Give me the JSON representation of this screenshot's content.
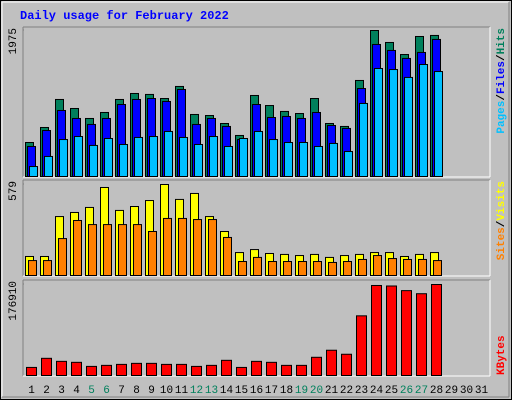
{
  "chart_data": [
    {
      "type": "bar",
      "title": "Daily usage for February 2022",
      "categories": [
        "1",
        "2",
        "3",
        "4",
        "5",
        "6",
        "7",
        "8",
        "9",
        "10",
        "11",
        "12",
        "13",
        "14",
        "15",
        "16",
        "17",
        "18",
        "19",
        "20",
        "21",
        "22",
        "23",
        "24",
        "25",
        "26",
        "27",
        "28",
        "29",
        "30",
        "31"
      ],
      "ylim": [
        0,
        1975
      ],
      "yticks": [
        1975
      ],
      "legend_separator": "/",
      "series": [
        {
          "name": "Hits",
          "color": "#00805c",
          "values": [
            460,
            663,
            1042,
            920,
            785,
            866,
            1042,
            1123,
            1110,
            1055,
            1218,
            839,
            825,
            717,
            555,
            1096,
            960,
            880,
            852,
            1055,
            717,
            677,
            1299,
            1975,
            1813,
            1650,
            1894,
            1908,
            null,
            null,
            null
          ]
        },
        {
          "name": "Files",
          "color": "#0000ff",
          "values": [
            406,
            622,
            893,
            785,
            704,
            785,
            974,
            1042,
            1055,
            1015,
            1177,
            704,
            785,
            677,
            500,
            974,
            798,
            812,
            785,
            866,
            690,
            650,
            1190,
            1786,
            1705,
            1597,
            1678,
            1854,
            null,
            null,
            null
          ]
        },
        {
          "name": "Pages",
          "color": "#00c0ff",
          "values": [
            135,
            271,
            500,
            541,
            420,
            514,
            433,
            528,
            541,
            609,
            528,
            433,
            541,
            406,
            514,
            609,
            500,
            460,
            460,
            406,
            447,
            338,
            988,
            1461,
            1447,
            1340,
            1515,
            1420,
            null,
            null,
            null
          ]
        }
      ]
    },
    {
      "type": "bar",
      "categories": [
        "1",
        "2",
        "3",
        "4",
        "5",
        "6",
        "7",
        "8",
        "9",
        "10",
        "11",
        "12",
        "13",
        "14",
        "15",
        "16",
        "17",
        "18",
        "19",
        "20",
        "21",
        "22",
        "23",
        "24",
        "25",
        "26",
        "27",
        "28",
        "29",
        "30",
        "31"
      ],
      "ylim": [
        0,
        579
      ],
      "yticks": [
        579
      ],
      "legend_separator": "/",
      "series": [
        {
          "name": "Visits",
          "color": "#ffff00",
          "values": [
            121,
            121,
            375,
            401,
            433,
            560,
            414,
            439,
            477,
            579,
            484,
            522,
            375,
            280,
            146,
            165,
            140,
            134,
            127,
            134,
            115,
            127,
            134,
            146,
            146,
            121,
            134,
            146,
            null,
            null,
            null
          ]
        },
        {
          "name": "Sites",
          "color": "#ff8000",
          "values": [
            95,
            95,
            235,
            350,
            324,
            324,
            324,
            324,
            280,
            363,
            363,
            356,
            356,
            242,
            89,
            115,
            89,
            89,
            89,
            89,
            83,
            89,
            102,
            127,
            108,
            102,
            102,
            95,
            null,
            null,
            null
          ]
        }
      ]
    },
    {
      "type": "bar",
      "categories": [
        "1",
        "2",
        "3",
        "4",
        "5",
        "6",
        "7",
        "8",
        "9",
        "10",
        "11",
        "12",
        "13",
        "14",
        "15",
        "16",
        "17",
        "18",
        "19",
        "20",
        "21",
        "22",
        "23",
        "24",
        "25",
        "26",
        "27",
        "28",
        "29",
        "30",
        "31"
      ],
      "ylim": [
        0,
        176910
      ],
      "yticks": [
        176910
      ],
      "highlight_categories": [
        "5",
        "6",
        "12",
        "13",
        "19",
        "20",
        "26",
        "27"
      ],
      "highlight_color": "#00805c",
      "series": [
        {
          "name": "KBytes",
          "color": "#ff0000",
          "values": [
            15700,
            33400,
            27500,
            25600,
            17700,
            19700,
            21600,
            23600,
            23600,
            21600,
            21600,
            17700,
            19700,
            29500,
            15700,
            27500,
            25600,
            19700,
            19700,
            35400,
            49100,
            41300,
            116000,
            175000,
            174000,
            165000,
            159000,
            176910,
            null,
            null,
            null
          ]
        }
      ]
    }
  ]
}
